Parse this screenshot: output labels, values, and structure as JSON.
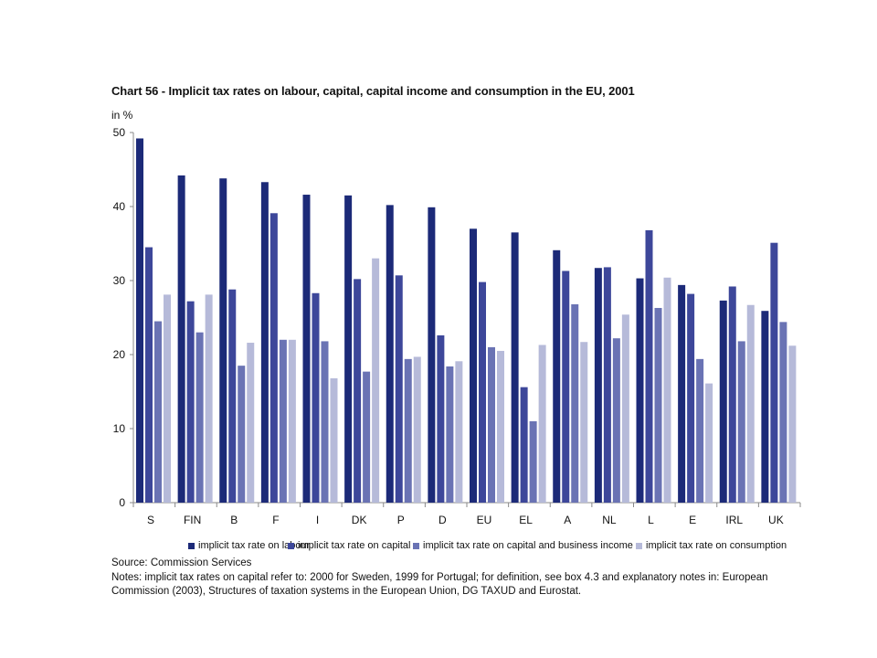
{
  "chart_data": {
    "type": "bar",
    "title": "Chart 56 - Implicit tax rates on labour, capital, capital income and consumption in the EU, 2001",
    "ylabel": "in %",
    "xlabel": "",
    "ylim": [
      0,
      50
    ],
    "yticks": [
      0,
      10,
      20,
      30,
      40,
      50
    ],
    "grid": false,
    "legend_position": "bottom",
    "categories": [
      "S",
      "FIN",
      "B",
      "F",
      "I",
      "DK",
      "P",
      "D",
      "EU",
      "EL",
      "A",
      "NL",
      "L",
      "E",
      "IRL",
      "UK"
    ],
    "series": [
      {
        "name": "implicit tax rate on labour",
        "color": "#1c2a78",
        "values": [
          49.2,
          44.2,
          43.8,
          43.3,
          41.6,
          41.5,
          40.2,
          39.9,
          37.0,
          36.5,
          34.1,
          31.7,
          30.3,
          29.4,
          27.3,
          25.9
        ]
      },
      {
        "name": "implicit tax rate on capital",
        "color": "#3d479a",
        "values": [
          34.5,
          27.2,
          28.8,
          39.1,
          28.3,
          30.2,
          30.7,
          22.6,
          29.8,
          15.6,
          31.3,
          31.8,
          36.8,
          28.2,
          29.2,
          35.1
        ]
      },
      {
        "name": "implicit tax rate on capital and business income",
        "color": "#6a73b4",
        "values": [
          24.5,
          23.0,
          18.5,
          22.0,
          21.8,
          17.7,
          19.4,
          18.4,
          21.0,
          11.0,
          26.8,
          22.2,
          26.3,
          19.4,
          21.8,
          24.4
        ]
      },
      {
        "name": "implicit tax rate on consumption",
        "color": "#b6bad9",
        "values": [
          28.1,
          28.1,
          21.6,
          22.0,
          16.8,
          33.0,
          19.7,
          19.1,
          20.5,
          21.3,
          21.7,
          25.4,
          30.4,
          16.1,
          26.7,
          21.2
        ]
      }
    ]
  },
  "source": "Source: Commission Services",
  "notes": "Notes: implicit tax rates on capital refer to: 2000 for Sweden, 1999 for Portugal; for definition, see box 4.3 and explanatory notes in: European Commission (2003), Structures of taxation systems in the European Union, DG TAXUD and Eurostat.",
  "colors": {
    "axis": "#8a8a8a",
    "text": "#111111"
  }
}
